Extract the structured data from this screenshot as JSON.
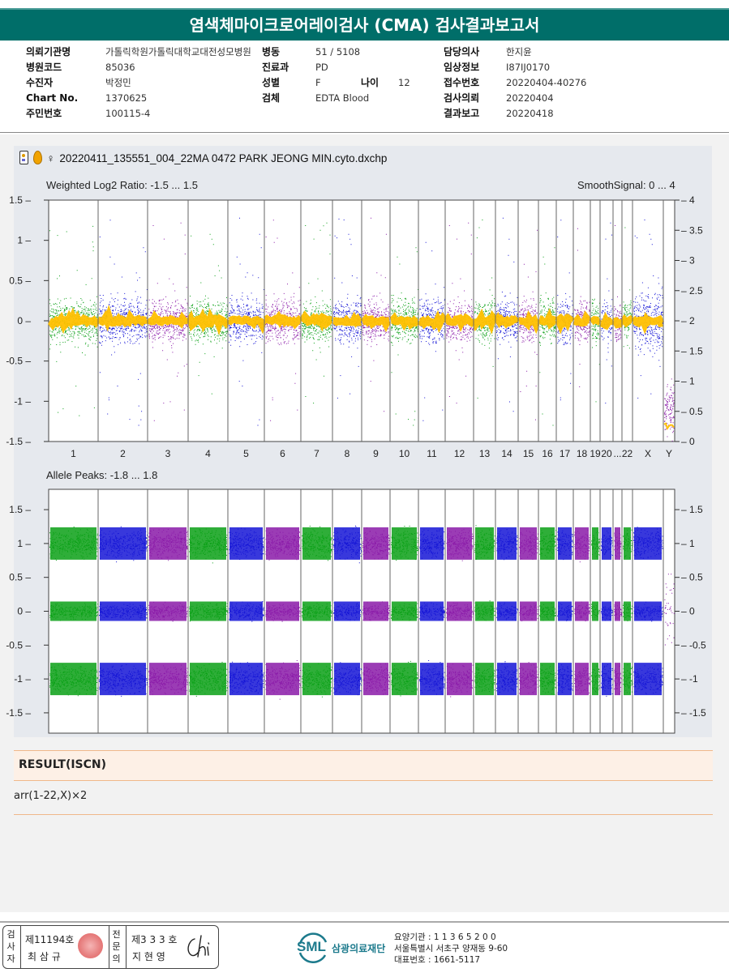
{
  "report": {
    "title": "염색체마이크로어레이검사 (CMA) 검사결과보고서"
  },
  "patient_info": {
    "col1": [
      {
        "label": "의뢰기관명",
        "value": "가톨릭학원가톨릭대학교대전성모병원"
      },
      {
        "label": "병원코드",
        "value": "85036"
      },
      {
        "label": "수진자",
        "value": "박정민"
      },
      {
        "label": "Chart No.",
        "value": "1370625"
      },
      {
        "label": "주민번호",
        "value": "100115-4"
      }
    ],
    "col2": [
      {
        "label": "병동",
        "value": "51 / 5108"
      },
      {
        "label": "진료과",
        "value": "PD"
      },
      {
        "label": "성별",
        "value": "F"
      },
      {
        "label": "검체",
        "value": "EDTA Blood"
      }
    ],
    "age": {
      "label": "나이",
      "value": "12"
    },
    "col3": [
      {
        "label": "담당의사",
        "value": "한지윤"
      },
      {
        "label": "임상정보",
        "value": "I87IJ0170"
      },
      {
        "label": "접수번호",
        "value": "20220404-40276"
      },
      {
        "label": "검사의뢰",
        "value": "20220404"
      },
      {
        "label": "결과보고",
        "value": "20220418"
      }
    ]
  },
  "plot": {
    "sex_symbol": "♀",
    "filename": "20220411_135551_004_22MA 0472 PARK JEONG MIN.cyto.dxchp",
    "top_left_label": "Weighted Log2 Ratio: -1.5 ... 1.5",
    "top_right_label": "SmoothSignal: 0 ... 4",
    "bottom_left_label": "Allele Peaks: -1.8 ... 1.8"
  },
  "chart_data": [
    {
      "type": "scatter",
      "title": "Weighted Log2 Ratio",
      "ylabel": "Weighted Log2 Ratio",
      "ylim": [
        -1.5,
        1.5
      ],
      "y2label": "SmoothSignal",
      "y2lim": [
        0,
        4
      ],
      "yticks": [
        "1.5",
        "1",
        "0.5",
        "0",
        "-0.5",
        "-1",
        "-1.5"
      ],
      "y2ticks": [
        "4",
        "3.5",
        "3",
        "2.5",
        "2",
        "1.5",
        "1",
        "0.5",
        "0"
      ],
      "categories": [
        "1",
        "2",
        "3",
        "4",
        "5",
        "6",
        "7",
        "8",
        "9",
        "10",
        "11",
        "12",
        "13",
        "14",
        "15",
        "16",
        "17",
        "18",
        "19",
        "20",
        "...",
        "22",
        "X",
        "Y"
      ],
      "series": [
        {
          "name": "Weighted Log2 Ratio",
          "color_cycle": [
            "#0aa016",
            "#1515d6",
            "#8a1aa8"
          ],
          "median": 0.0
        },
        {
          "name": "SmoothSignal",
          "color": "#ffc000",
          "median": 2.0
        }
      ]
    },
    {
      "type": "scatter",
      "title": "Allele Peaks",
      "ylabel": "Allele Peaks",
      "ylim": [
        -1.8,
        1.8
      ],
      "yticks": [
        "1.5",
        "1",
        "0.5",
        "0",
        "-0.5",
        "-1",
        "-1.5"
      ],
      "y2ticks": [
        "1.5",
        "1",
        "0.5",
        "0",
        "-0.5",
        "-1",
        "-1.5"
      ],
      "categories": [
        "1",
        "2",
        "3",
        "4",
        "5",
        "6",
        "7",
        "8",
        "9",
        "10",
        "11",
        "12",
        "13",
        "14",
        "15",
        "16",
        "17",
        "18",
        "19",
        "20",
        "...",
        "22",
        "X",
        "Y"
      ],
      "series": [
        {
          "name": "Allele Peaks",
          "bands": [
            1.0,
            0.0,
            -1.0
          ]
        }
      ]
    }
  ],
  "result": {
    "header": "RESULT(ISCN)",
    "text": "arr(1-22,X)×2"
  },
  "footer": {
    "sig1_vertical": "검사자",
    "sig1_number": "제11194호",
    "sig1_name": "최 삼 규",
    "sig2_vertical": "전문의",
    "sig2_number": "제3 3 3 호",
    "sig2_name": "지 현 영",
    "logo_text": "SML",
    "org_name": "삼광의료재단",
    "addr_line1": "요양기관 : 1 1 3 6 5 2 0 0",
    "addr_line2": "서울특별시 서초구 양재동 9-60",
    "addr_line3": "대표번호 : 1661-5117",
    "brand_color": "#1c7a8c"
  }
}
